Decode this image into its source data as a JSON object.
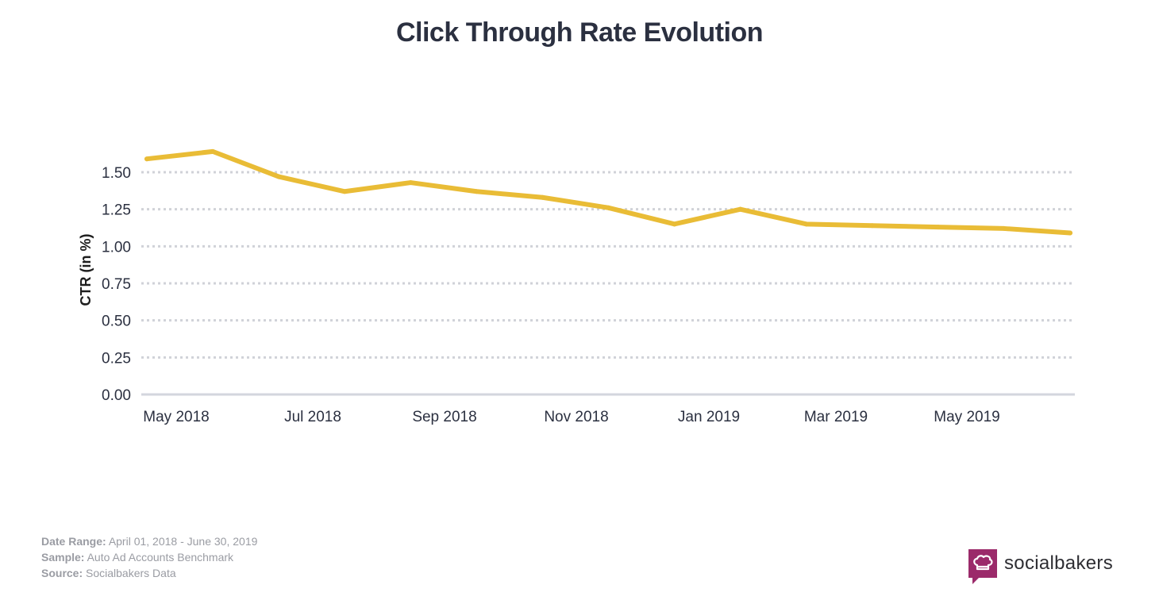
{
  "chart_data": {
    "type": "line",
    "title": "Click Through Rate Evolution",
    "xlabel": "",
    "ylabel": "CTR (in %)",
    "ylim": [
      0,
      1.5
    ],
    "grid": true,
    "y_ticks": [
      "0.00",
      "0.25",
      "0.50",
      "0.75",
      "1.00",
      "1.25",
      "1.50"
    ],
    "x_tick_labels": [
      "May 2018",
      "Jul 2018",
      "Sep 2018",
      "Nov 2018",
      "Jan 2019",
      "Mar 2019",
      "May 2019"
    ],
    "x": [
      "Apr 2018",
      "May 2018",
      "Jun 2018",
      "Jul 2018",
      "Aug 2018",
      "Sep 2018",
      "Oct 2018",
      "Nov 2018",
      "Dec 2018",
      "Jan 2019",
      "Feb 2019",
      "Mar 2019",
      "Apr 2019",
      "May 2019",
      "Jun 2019"
    ],
    "series": [
      {
        "name": "CTR",
        "color": "#e9bc36",
        "values": [
          1.59,
          1.64,
          1.47,
          1.37,
          1.43,
          1.37,
          1.33,
          1.26,
          1.15,
          1.25,
          1.15,
          1.14,
          1.13,
          1.12,
          1.09
        ]
      }
    ]
  },
  "footer": {
    "date_range_label": "Date Range:",
    "date_range": "April 01, 2018 - June 30, 2019",
    "sample_label": "Sample:",
    "sample": "Auto Ad Accounts Benchmark",
    "source_label": "Source:",
    "source": "Socialbakers Data"
  },
  "logo": {
    "name": "socialbakers",
    "color": "#9b2a6a"
  }
}
